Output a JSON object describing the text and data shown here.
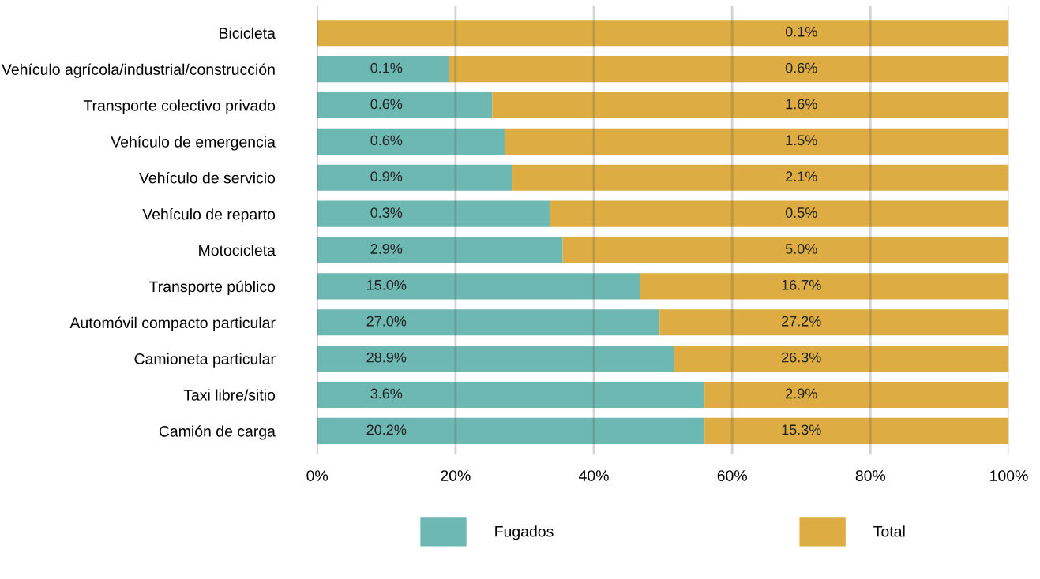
{
  "chart_data": {
    "type": "bar",
    "orientation": "horizontal",
    "stacked": true,
    "categories": [
      "Bicicleta",
      "Vehículo agrícola/industrial/construcción",
      "Transporte colectivo privado",
      "Vehículo de emergencia",
      "Vehículo de servicio",
      "Vehículo de reparto",
      "Motocicleta",
      "Transporte público",
      "Automóvil compacto particular",
      "Camioneta particular",
      "Taxi libre/sitio",
      "Camión de carga"
    ],
    "series": [
      {
        "name": "Fugados",
        "color": "#6db8b2",
        "values": [
          0,
          19.0,
          25.3,
          27.2,
          28.2,
          33.6,
          35.5,
          46.7,
          49.5,
          51.6,
          56.0,
          56.0
        ]
      },
      {
        "name": "Total",
        "color": "#ddac42",
        "values": [
          100,
          81.0,
          74.7,
          72.8,
          71.8,
          66.4,
          64.5,
          53.3,
          50.5,
          48.4,
          44.0,
          44.0
        ]
      }
    ],
    "annotations": [
      {
        "text": "0.1%",
        "y": "Bicicleta"
      },
      {
        "text": "0.1%",
        "y": "Vehículo agrícola/industrial/construcción"
      },
      {
        "text": "0.6%",
        "y": "Vehículo agrícola/industrial/construcción"
      },
      {
        "text": "0.6%",
        "y": "Transporte colectivo privado"
      },
      {
        "text": "1.6%",
        "y": "Transporte colectivo privado"
      },
      {
        "text": "0.6%",
        "y": "Vehículo de emergencia"
      },
      {
        "text": "1.5%",
        "y": "Vehículo de emergencia"
      },
      {
        "text": "0.9%",
        "y": "Vehículo de servicio"
      },
      {
        "text": "2.1%",
        "y": "Vehículo de servicio"
      },
      {
        "text": "0.3%",
        "y": "Vehículo de reparto"
      },
      {
        "text": "0.5%",
        "y": "Vehículo de reparto"
      },
      {
        "text": "2.9%",
        "y": "Motocicleta"
      },
      {
        "text": "5.0%",
        "y": "Motocicleta"
      },
      {
        "text": "15.0%",
        "y": "Transporte público"
      },
      {
        "text": "16.7%",
        "y": "Transporte público"
      },
      {
        "text": "27.0%",
        "y": "Automóvil compacto particular"
      },
      {
        "text": "27.2%",
        "y": "Automóvil compacto particular"
      },
      {
        "text": "28.9%",
        "y": "Camioneta particular"
      },
      {
        "text": "26.3%",
        "y": "Camioneta particular"
      },
      {
        "text": "3.6%",
        "y": "Taxi libre/sitio"
      },
      {
        "text": "2.9%",
        "y": "Taxi libre/sitio"
      },
      {
        "text": "20.2%",
        "y": "Camión de carga"
      },
      {
        "text": "15.3%",
        "y": "Camión de carga"
      }
    ],
    "xlim": [
      0,
      100
    ],
    "xticks": [
      {
        "value": 0,
        "label": "0%"
      },
      {
        "value": 20,
        "label": "20%"
      },
      {
        "value": 40,
        "label": "40%"
      },
      {
        "value": 60,
        "label": "60%"
      },
      {
        "value": 80,
        "label": "80%"
      },
      {
        "value": 100,
        "label": "100%"
      }
    ],
    "grid": "x",
    "legend": "bottom"
  }
}
